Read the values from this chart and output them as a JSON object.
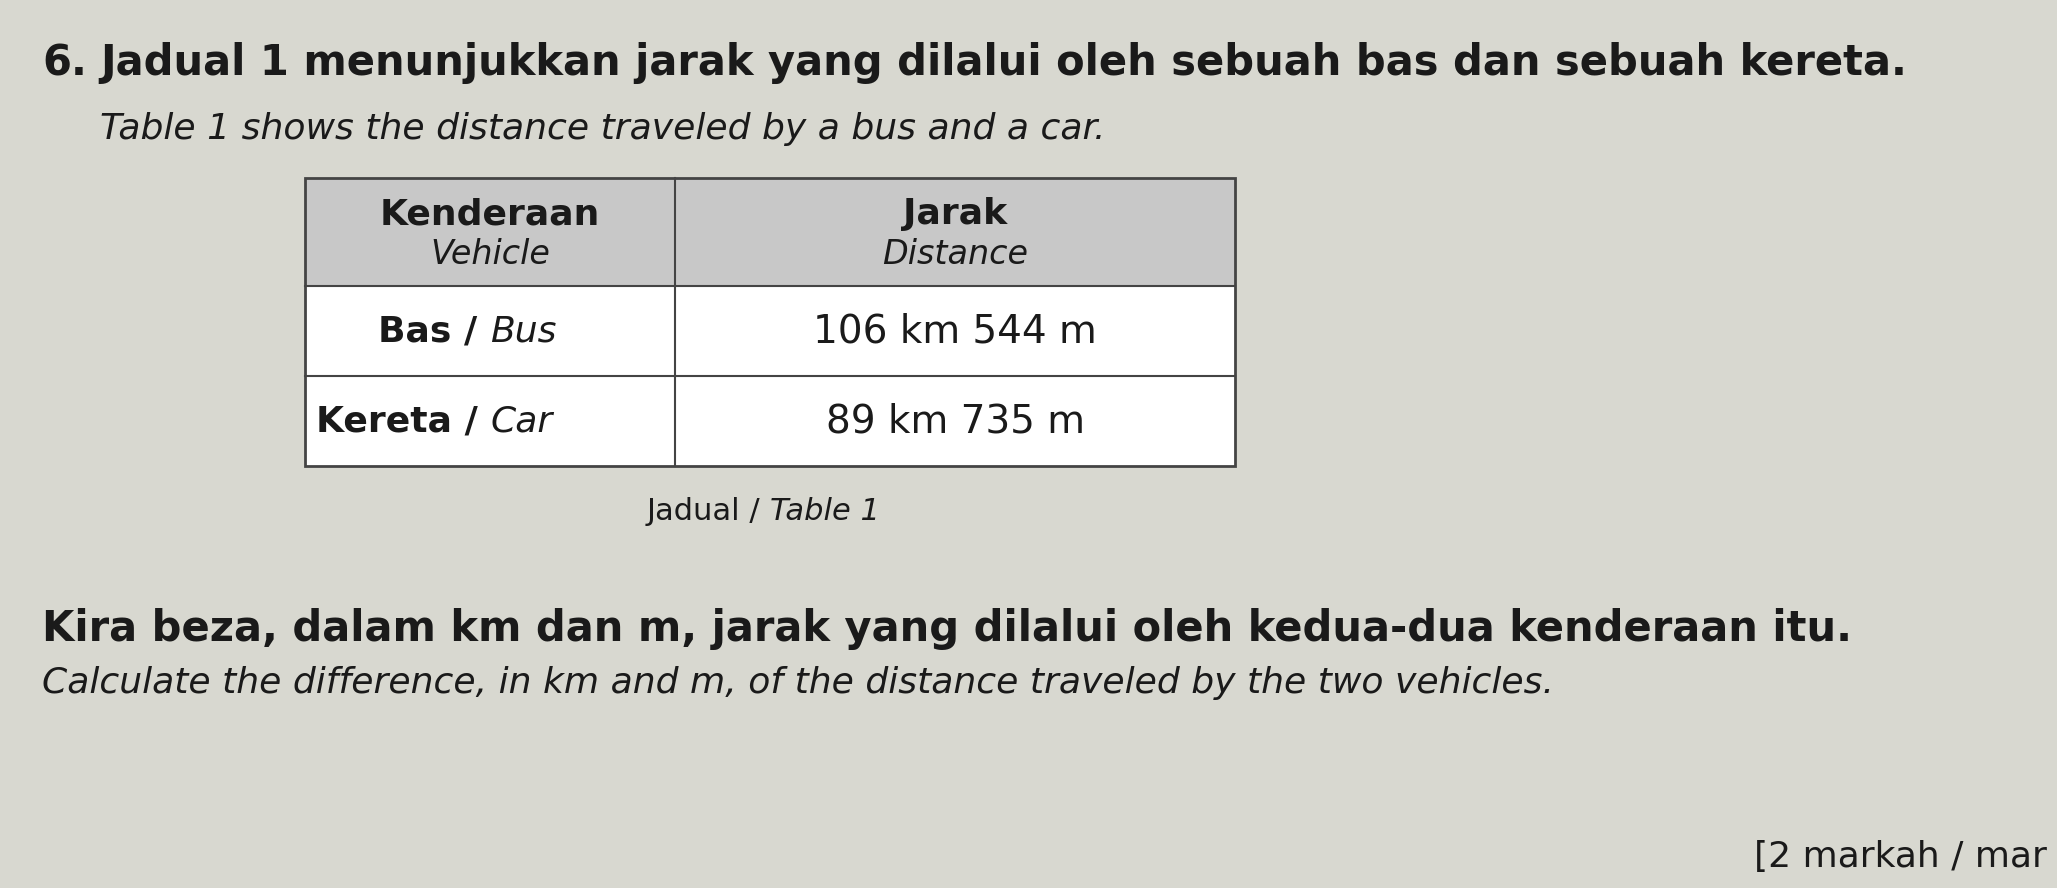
{
  "question_number": "6.",
  "title_malay": "Jadual 1 menunjukkan jarak yang dilalui oleh sebuah bas dan sebuah kereta.",
  "title_english": "Table 1 shows the distance traveled by a bus and a car.",
  "col1_header_malay": "Kenderaan",
  "col1_header_english": "Vehicle",
  "col2_header_malay": "Jarak",
  "col2_header_english": "Distance",
  "row1_col1_malay": "Bas",
  "row1_col1_sep": "/",
  "row1_col1_english": "Bus",
  "row1_col2": "106 km 544 m",
  "row2_col1_malay": "Kereta",
  "row2_col1_sep": "/",
  "row2_col1_english": "Car",
  "row2_col2": "89 km 735 m",
  "caption_malay": "Jadual",
  "caption_sep": "/",
  "caption_english": "Table 1",
  "question_malay": "Kira beza, dalam km dan m, jarak yang dilalui oleh kedua-dua kenderaan itu.",
  "question_english": "Calculate the difference, in km and m, of the distance traveled by the two vehicles.",
  "marks": "[2 markah / mar",
  "table_bg_header": "#c8c8c8",
  "table_bg_row": "#ffffff",
  "table_border_color": "#444444",
  "text_color_dark": "#1a1a1a",
  "page_bg": "#d8d8d0"
}
